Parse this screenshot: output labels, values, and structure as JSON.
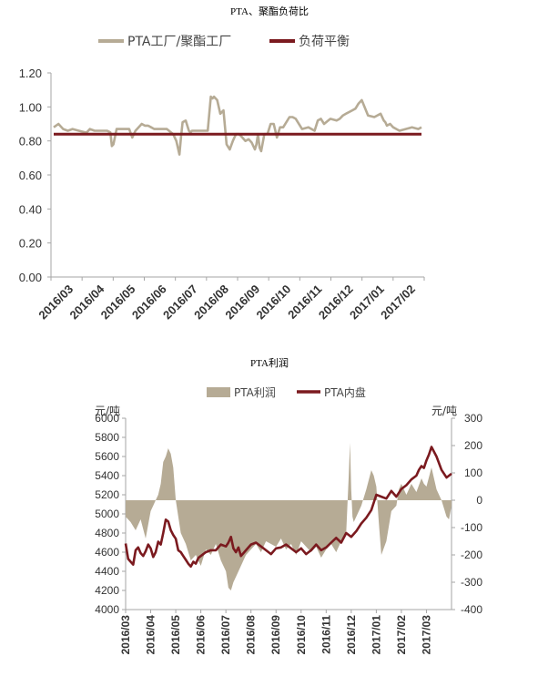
{
  "colors": {
    "tan": "#b6ab95",
    "maroon": "#7b1a1f",
    "axis": "#a6a6a6"
  },
  "chart_data": [
    {
      "type": "line",
      "title": "PTA、聚酯负荷比",
      "legend": [
        "PTA工厂/聚酯工厂",
        "负荷平衡"
      ],
      "legend_placement": "top",
      "grid": false,
      "y_ticks": [
        "1.20",
        "1.00",
        "0.80",
        "0.60",
        "0.40",
        "0.20",
        "0.00"
      ],
      "ylim": [
        0,
        1.2
      ],
      "x_tick_labels": [
        "2016/03",
        "2016/04",
        "2016/05",
        "2016/06",
        "2016/07",
        "2016/08",
        "2016/09",
        "2016/10",
        "2016/11",
        "2016/12",
        "2017/01",
        "2017/02"
      ],
      "series": [
        {
          "name": "PTA工厂/聚酯工厂",
          "x": [
            0,
            0.15,
            0.3,
            0.45,
            0.6,
            0.8,
            1.0,
            1.05,
            1.1,
            1.15,
            1.3,
            1.5,
            1.7,
            1.8,
            1.85,
            1.9,
            2.0,
            2.2,
            2.4,
            2.5,
            2.6,
            2.8,
            2.9,
            3.0,
            3.1,
            3.2,
            3.4,
            3.6,
            3.8,
            3.9,
            4.0,
            4.05,
            4.1,
            4.2,
            4.3,
            4.35,
            4.4,
            4.6,
            4.8,
            4.9,
            5.0,
            5.05,
            5.1,
            5.2,
            5.3,
            5.4,
            5.5,
            5.6,
            5.7,
            5.75,
            5.8,
            5.9,
            6.0,
            6.1,
            6.2,
            6.3,
            6.4,
            6.45,
            6.5,
            6.55,
            6.6,
            6.7,
            6.8,
            6.9,
            7.0,
            7.1,
            7.2,
            7.3,
            7.5,
            7.6,
            7.7,
            7.9,
            8.1,
            8.3,
            8.4,
            8.5,
            8.6,
            8.8,
            9.0,
            9.1,
            9.2,
            9.3,
            9.5,
            9.6,
            9.7,
            9.8,
            10.0,
            10.2,
            10.4,
            10.5,
            10.55,
            10.6,
            10.7,
            10.8,
            10.9,
            11.0,
            11.2,
            11.4,
            11.6,
            11.7
          ],
          "values": [
            0.88,
            0.9,
            0.87,
            0.86,
            0.87,
            0.86,
            0.85,
            0.85,
            0.86,
            0.87,
            0.86,
            0.86,
            0.86,
            0.85,
            0.77,
            0.78,
            0.87,
            0.87,
            0.87,
            0.82,
            0.86,
            0.9,
            0.89,
            0.89,
            0.88,
            0.87,
            0.87,
            0.87,
            0.84,
            0.8,
            0.72,
            0.82,
            0.91,
            0.92,
            0.86,
            0.85,
            0.86,
            0.86,
            0.86,
            0.86,
            1.06,
            1.05,
            1.06,
            1.04,
            0.96,
            0.98,
            0.78,
            0.75,
            0.8,
            0.82,
            0.84,
            0.84,
            0.82,
            0.8,
            0.81,
            0.79,
            0.75,
            0.78,
            0.84,
            0.76,
            0.74,
            0.84,
            0.84,
            0.9,
            0.9,
            0.82,
            0.88,
            0.88,
            0.94,
            0.94,
            0.93,
            0.87,
            0.88,
            0.86,
            0.92,
            0.93,
            0.9,
            0.93,
            0.92,
            0.93,
            0.95,
            0.96,
            0.98,
            0.99,
            1.02,
            1.04,
            0.95,
            0.94,
            0.96,
            0.92,
            0.91,
            0.89,
            0.9,
            0.88,
            0.87,
            0.86,
            0.87,
            0.88,
            0.87,
            0.88
          ]
        },
        {
          "name": "负荷平衡",
          "x": [
            0,
            11.7
          ],
          "values": [
            0.84,
            0.84
          ]
        }
      ]
    },
    {
      "type": "line",
      "title": "PTA利润",
      "legend": [
        "PTA利润",
        "PTA内盘"
      ],
      "legend_placement": "top",
      "grid": false,
      "y_left_unit": "元/吨",
      "y_right_unit": "元/吨",
      "y_left_ticks": [
        "6000",
        "5800",
        "5600",
        "5400",
        "5200",
        "5000",
        "4800",
        "4600",
        "4400",
        "4200",
        "4000"
      ],
      "y_right_ticks": [
        "300",
        "200",
        "100",
        "0",
        "-100",
        "-200",
        "-300",
        "-400"
      ],
      "ylim_left": [
        4000,
        6000
      ],
      "ylim_right": [
        -400,
        300
      ],
      "x_tick_labels": [
        "2016/03",
        "2016/04",
        "2016/05",
        "2016/06",
        "2016/07",
        "2016/08",
        "2016/09",
        "2016/10",
        "2016/11",
        "2016/12",
        "2017/01",
        "2017/02",
        "2017/03"
      ],
      "series": [
        {
          "name": "PTA利润",
          "type": "area",
          "axis": "right",
          "x": [
            0,
            0.2,
            0.4,
            0.6,
            0.8,
            1.0,
            1.1,
            1.2,
            1.3,
            1.4,
            1.5,
            1.6,
            1.7,
            1.8,
            1.9,
            2.0,
            2.2,
            2.4,
            2.6,
            2.8,
            3.0,
            3.2,
            3.4,
            3.6,
            3.8,
            4.0,
            4.1,
            4.2,
            4.3,
            4.4,
            4.6,
            4.8,
            5.0,
            5.2,
            5.4,
            5.6,
            5.8,
            6.0,
            6.2,
            6.4,
            6.6,
            6.8,
            7.0,
            7.2,
            7.4,
            7.6,
            7.8,
            8.0,
            8.2,
            8.4,
            8.6,
            8.8,
            8.9,
            8.95,
            9.0,
            9.05,
            9.1,
            9.2,
            9.4,
            9.6,
            9.8,
            9.9,
            10.0,
            10.1,
            10.2,
            10.4,
            10.6,
            10.8,
            10.9,
            11.0,
            11.2,
            11.4,
            11.6,
            11.8,
            11.9,
            12.0,
            12.2,
            12.4,
            12.6,
            12.8,
            12.9,
            13.0
          ],
          "values": [
            -60,
            -80,
            -110,
            -70,
            -140,
            -40,
            -20,
            0,
            20,
            60,
            140,
            160,
            190,
            170,
            120,
            0,
            -120,
            -160,
            -220,
            -200,
            -240,
            -180,
            -200,
            -160,
            -220,
            -260,
            -320,
            -330,
            -300,
            -280,
            -240,
            -200,
            -180,
            -160,
            -190,
            -150,
            -160,
            -170,
            -140,
            -180,
            -160,
            -200,
            -150,
            -170,
            -190,
            -170,
            -210,
            -180,
            -160,
            -190,
            -150,
            -120,
            90,
            210,
            40,
            -60,
            -80,
            -60,
            -20,
            40,
            110,
            90,
            50,
            -80,
            -200,
            -150,
            -40,
            -20,
            40,
            60,
            20,
            60,
            30,
            80,
            60,
            50,
            120,
            40,
            0,
            -60,
            -70,
            -20
          ]
        },
        {
          "name": "PTA内盘",
          "axis": "left",
          "x": [
            0,
            0.1,
            0.2,
            0.3,
            0.4,
            0.5,
            0.6,
            0.7,
            0.8,
            0.9,
            1.0,
            1.1,
            1.2,
            1.3,
            1.4,
            1.5,
            1.6,
            1.7,
            1.8,
            1.9,
            2.0,
            2.1,
            2.2,
            2.3,
            2.4,
            2.5,
            2.6,
            2.7,
            2.8,
            2.9,
            3.0,
            3.2,
            3.4,
            3.6,
            3.8,
            4.0,
            4.1,
            4.2,
            4.3,
            4.4,
            4.5,
            4.6,
            4.8,
            5.0,
            5.2,
            5.4,
            5.6,
            5.8,
            6.0,
            6.2,
            6.4,
            6.6,
            6.8,
            7.0,
            7.2,
            7.4,
            7.6,
            7.8,
            8.0,
            8.2,
            8.4,
            8.6,
            8.8,
            9.0,
            9.2,
            9.4,
            9.6,
            9.8,
            10.0,
            10.2,
            10.4,
            10.6,
            10.8,
            11.0,
            11.2,
            11.4,
            11.6,
            11.7,
            11.8,
            11.9,
            12.0,
            12.1,
            12.2,
            12.4,
            12.6,
            12.8,
            13.0
          ],
          "values": [
            4690,
            4530,
            4500,
            4470,
            4620,
            4650,
            4590,
            4560,
            4610,
            4680,
            4640,
            4550,
            4600,
            4710,
            4680,
            4800,
            4940,
            4920,
            4830,
            4780,
            4740,
            4620,
            4600,
            4560,
            4520,
            4480,
            4450,
            4500,
            4480,
            4540,
            4560,
            4600,
            4620,
            4620,
            4680,
            4660,
            4700,
            4760,
            4640,
            4600,
            4650,
            4560,
            4620,
            4680,
            4700,
            4660,
            4620,
            4580,
            4640,
            4650,
            4680,
            4640,
            4600,
            4640,
            4580,
            4620,
            4680,
            4620,
            4650,
            4700,
            4750,
            4700,
            4800,
            4760,
            4820,
            4900,
            4960,
            5040,
            5200,
            5180,
            5160,
            5240,
            5180,
            5260,
            5300,
            5360,
            5400,
            5460,
            5500,
            5480,
            5560,
            5620,
            5700,
            5600,
            5460,
            5380,
            5420
          ]
        }
      ]
    }
  ]
}
